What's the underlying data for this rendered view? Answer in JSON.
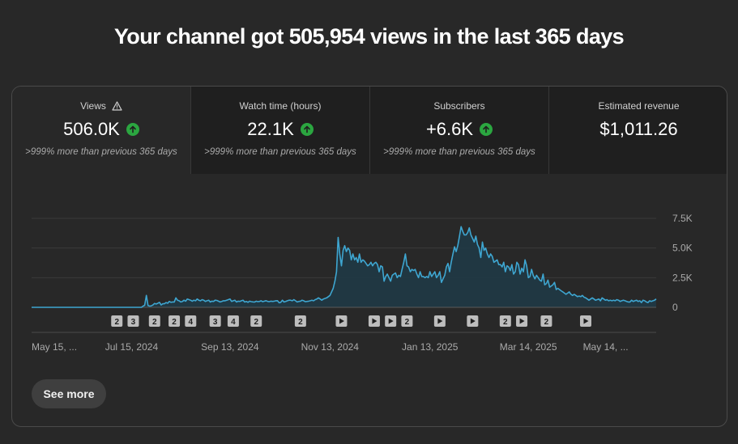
{
  "page": {
    "title": "Your channel got 505,954 views in the last 365 days"
  },
  "tabs": [
    {
      "label": "Views",
      "value": "506.0K",
      "change": ">999% more than previous 365 days",
      "trend": "up",
      "warning": true,
      "selected": true
    },
    {
      "label": "Watch time (hours)",
      "value": "22.1K",
      "change": ">999% more than previous 365 days",
      "trend": "up",
      "warning": false,
      "selected": false
    },
    {
      "label": "Subscribers",
      "value": "+6.6K",
      "change": ">999% more than previous 365 days",
      "trend": "up",
      "warning": false,
      "selected": false
    },
    {
      "label": "Estimated revenue",
      "value": "$1,011.26",
      "change": "",
      "trend": "none",
      "warning": false,
      "selected": false
    }
  ],
  "colors": {
    "line": "#3ea6d1",
    "fill": "#1e3a46",
    "trend_up": "#2ba640",
    "grid": "#3a3a3a"
  },
  "chart_data": {
    "type": "area",
    "series": [
      {
        "values": [
          0,
          0,
          0,
          0,
          0,
          0,
          0,
          0,
          0,
          0,
          0,
          0,
          0,
          0,
          0,
          0,
          0,
          0,
          0,
          0,
          0,
          0,
          0,
          0,
          0,
          0,
          0,
          0,
          0,
          0,
          0,
          0,
          0,
          0,
          0,
          0,
          0,
          0,
          0,
          0,
          0,
          0,
          0,
          0,
          0,
          0,
          0,
          0,
          0,
          0,
          0,
          0,
          0,
          0,
          0,
          0,
          0,
          0,
          0,
          0,
          0,
          0,
          0,
          0,
          0,
          0,
          0,
          0,
          100,
          180,
          1000,
          150,
          100,
          120,
          200,
          330,
          280,
          340,
          420,
          200,
          300,
          300,
          400,
          350,
          500,
          420,
          450,
          450,
          800,
          600,
          550,
          450,
          500,
          600,
          520,
          700,
          650,
          600,
          520,
          600,
          550,
          700,
          600,
          550,
          650,
          600,
          500,
          550,
          600,
          450,
          520,
          500,
          600,
          580,
          520,
          450,
          500,
          550,
          550,
          600,
          650,
          700,
          500,
          550,
          600,
          450,
          520,
          500,
          550,
          600,
          450,
          500,
          420,
          520,
          480,
          460,
          440,
          520,
          480,
          500,
          550,
          480,
          520,
          560,
          500,
          480,
          520,
          500,
          520,
          550,
          560,
          380,
          420,
          600,
          450,
          500,
          550,
          600,
          600,
          550,
          650,
          550,
          450,
          500,
          520,
          600,
          550,
          480,
          500,
          520,
          550,
          600,
          550,
          650,
          700,
          800,
          700,
          600,
          700,
          750,
          800,
          900,
          1000,
          1300,
          1600,
          2200,
          3000,
          5900,
          4500,
          3500,
          4800,
          5200,
          4700,
          5000,
          4800,
          4000,
          4500,
          4000,
          4200,
          3800,
          4500,
          3800,
          4000,
          3900,
          3700,
          3500,
          3600,
          3800,
          3500,
          3700,
          3800,
          3600,
          3000,
          3500,
          3400,
          2200,
          2600,
          2800,
          2500,
          2200,
          2700,
          2800,
          2900,
          2500,
          2700,
          2600,
          3200,
          3800,
          4500,
          3500,
          3400,
          3000,
          3200,
          3100,
          3200,
          2800,
          2500,
          3000,
          2600,
          2600,
          2500,
          2600,
          2500,
          3000,
          2600,
          2800,
          3000,
          2500,
          2700,
          3000,
          2100,
          2400,
          2700,
          3400,
          3700,
          3000,
          3800,
          4500,
          5100,
          4700,
          5200,
          6000,
          6800,
          6400,
          6100,
          6100,
          6300,
          6700,
          6100,
          5800,
          5500,
          6000,
          5300,
          5000,
          4200,
          5500,
          4800,
          5000,
          4500,
          4200,
          4500,
          4300,
          3800,
          3900,
          4000,
          3600,
          3600,
          3400,
          3800,
          3000,
          3500,
          3400,
          3100,
          3600,
          2800,
          3000,
          3800,
          3600,
          2800,
          3300,
          3000,
          4000,
          3500,
          2500,
          2600,
          3200,
          2700,
          2400,
          2700,
          2500,
          2300,
          2200,
          2800,
          1900,
          2000,
          2300,
          1700,
          1800,
          1900,
          2100,
          1500,
          1600,
          1500,
          1400,
          1300,
          1200,
          1100,
          1200,
          1300,
          1100,
          1000,
          1100,
          1000,
          900,
          950,
          900,
          1000,
          850,
          800,
          700,
          600,
          700,
          800,
          700,
          600,
          650,
          700,
          550,
          800,
          700,
          600,
          650,
          550,
          600,
          550,
          600,
          550,
          650,
          600,
          500,
          550,
          600,
          550,
          500,
          450,
          450,
          600,
          500,
          550,
          600,
          500,
          550,
          400,
          600,
          550,
          450,
          400,
          550,
          500,
          550,
          600,
          700
        ]
      }
    ],
    "x_tick_labels": [
      "May 15, ...",
      "Jul 15, 2024",
      "Sep 13, 2024",
      "Nov 13, 2024",
      "Jan 13, 2025",
      "Mar 14, 2025",
      "May 14, ..."
    ],
    "x_tick_days": [
      0,
      61,
      121,
      182,
      243,
      303,
      364
    ],
    "y_tick_labels": [
      "7.5K",
      "5.0K",
      "2.5K",
      "0"
    ],
    "y_tick_values": [
      7500,
      5000,
      2500,
      0
    ],
    "ylim": [
      0,
      7500
    ],
    "grid": true,
    "markers": [
      {
        "label": "2",
        "type": "number",
        "day": 52
      },
      {
        "label": "3",
        "type": "number",
        "day": 62
      },
      {
        "label": "2",
        "type": "number",
        "day": 75
      },
      {
        "label": "2",
        "type": "number",
        "day": 87
      },
      {
        "label": "4",
        "type": "number",
        "day": 97
      },
      {
        "label": "3",
        "type": "number",
        "day": 112
      },
      {
        "label": "4",
        "type": "number",
        "day": 123
      },
      {
        "label": "2",
        "type": "number",
        "day": 137
      },
      {
        "label": "2",
        "type": "number",
        "day": 164
      },
      {
        "label": "",
        "type": "play",
        "day": 189
      },
      {
        "label": "",
        "type": "play",
        "day": 209
      },
      {
        "label": "",
        "type": "play",
        "day": 219
      },
      {
        "label": "2",
        "type": "number",
        "day": 229
      },
      {
        "label": "",
        "type": "play",
        "day": 249
      },
      {
        "label": "",
        "type": "play",
        "day": 269
      },
      {
        "label": "2",
        "type": "number",
        "day": 289
      },
      {
        "label": "",
        "type": "play",
        "day": 299
      },
      {
        "label": "2",
        "type": "number",
        "day": 314
      },
      {
        "label": "",
        "type": "play",
        "day": 338
      }
    ]
  },
  "actions": {
    "see_more": "See more"
  }
}
